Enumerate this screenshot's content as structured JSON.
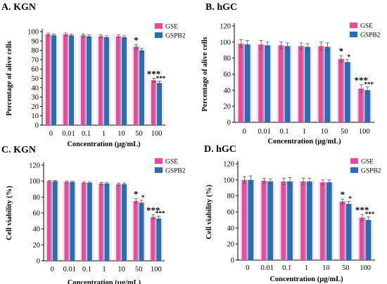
{
  "legend": {
    "series": [
      "GSE",
      "GSPB2"
    ]
  },
  "colors": {
    "GSE": "#e84c96",
    "GSPB2": "#2b6cb3",
    "GSE_glow": "#f2c2dc",
    "GSPB2_glow": "#b9cfee"
  },
  "chart_data": [
    {
      "type": "bar",
      "title": "A. KGN",
      "ylabel": "Percentage of alive cells",
      "xlabel": "Concentration (µg/mL)",
      "categories": [
        "0",
        "0.01",
        "0.1",
        "1",
        "10",
        "50",
        "100"
      ],
      "ylim": [
        0,
        100
      ],
      "yticks": [
        0,
        10,
        20,
        30,
        40,
        50,
        60,
        70,
        80,
        90,
        100
      ],
      "series": [
        {
          "name": "GSE",
          "values": [
            97,
            97,
            96,
            95,
            95,
            84,
            48
          ],
          "errors": [
            1.5,
            1.5,
            1.5,
            1.5,
            1.5,
            2,
            2
          ]
        },
        {
          "name": "GSPB2",
          "values": [
            96,
            96,
            95,
            94,
            94,
            80,
            45
          ],
          "errors": [
            1.5,
            1.5,
            1.5,
            1.5,
            1.5,
            2,
            2
          ]
        }
      ],
      "annotations": [
        {
          "category": "50",
          "series": "GSE",
          "text": "*"
        },
        {
          "category": "100",
          "series": "GSE",
          "text": "***"
        },
        {
          "category": "100",
          "series": "GSPB2",
          "text": "***"
        }
      ],
      "legend": "top-right",
      "grid": false
    },
    {
      "type": "bar",
      "title": "B. hGC",
      "ylabel": "Percentage of alive cells",
      "xlabel": "Concentration (µg/mL)",
      "categories": [
        "0",
        "0.01",
        "0.1",
        "1",
        "10",
        "50",
        "100"
      ],
      "ylim": [
        0,
        120
      ],
      "yticks": [
        0,
        20,
        40,
        60,
        80,
        100,
        120
      ],
      "series": [
        {
          "name": "GSE",
          "values": [
            98,
            97,
            96,
            95,
            95,
            79,
            42
          ],
          "errors": [
            5,
            5,
            4,
            4,
            5,
            4,
            5
          ]
        },
        {
          "name": "GSPB2",
          "values": [
            97,
            96,
            95,
            94,
            94,
            75,
            40
          ],
          "errors": [
            5,
            4,
            4,
            4,
            5,
            3,
            4
          ]
        }
      ],
      "annotations": [
        {
          "category": "50",
          "series": "GSE",
          "text": "*"
        },
        {
          "category": "50",
          "series": "GSPB2",
          "text": "*"
        },
        {
          "category": "100",
          "series": "GSE",
          "text": "***"
        },
        {
          "category": "100",
          "series": "GSPB2",
          "text": "***"
        }
      ],
      "legend": "top-right",
      "grid": false
    },
    {
      "type": "bar",
      "title": "C. KGN",
      "ylabel": "Cell viability (%)",
      "xlabel": "Concentration (µg/mL)",
      "categories": [
        "0",
        "0.01",
        "0.1",
        "1",
        "10",
        "50",
        "100"
      ],
      "ylim": [
        0,
        120
      ],
      "yticks": [
        0,
        20,
        40,
        60,
        80,
        100,
        120
      ],
      "series": [
        {
          "name": "GSE",
          "values": [
            100,
            99,
            98,
            97,
            96,
            75,
            55
          ],
          "errors": [
            1,
            1,
            1,
            1.5,
            1.5,
            3,
            3
          ]
        },
        {
          "name": "GSPB2",
          "values": [
            100,
            99,
            98,
            97,
            96,
            73,
            53
          ],
          "errors": [
            1,
            1,
            1,
            1.5,
            1.5,
            3,
            3
          ]
        }
      ],
      "annotations": [
        {
          "category": "50",
          "series": "GSE",
          "text": "*"
        },
        {
          "category": "50",
          "series": "GSPB2",
          "text": "*"
        },
        {
          "category": "100",
          "series": "GSE",
          "text": "***"
        },
        {
          "category": "100",
          "series": "GSPB2",
          "text": "***"
        }
      ],
      "legend": "top-right",
      "grid": false
    },
    {
      "type": "bar",
      "title": "D. hGC",
      "ylabel": "Cell viability (%)",
      "xlabel": "Concentration (µg/mL)",
      "categories": [
        "0",
        "0.01",
        "0.1",
        "1",
        "10",
        "50",
        "100"
      ],
      "ylim": [
        0,
        120
      ],
      "yticks": [
        0,
        20,
        40,
        60,
        80,
        100,
        120
      ],
      "series": [
        {
          "name": "GSE",
          "values": [
            100,
            99,
            98,
            98,
            97,
            73,
            53
          ],
          "errors": [
            4,
            3,
            4,
            4,
            3,
            3,
            4
          ]
        },
        {
          "name": "GSPB2",
          "values": [
            100,
            98,
            98,
            98,
            97,
            70,
            50
          ],
          "errors": [
            5,
            3,
            5,
            4,
            3,
            3,
            4
          ]
        }
      ],
      "annotations": [
        {
          "category": "50",
          "series": "GSE",
          "text": "*"
        },
        {
          "category": "50",
          "series": "GSPB2",
          "text": "*"
        },
        {
          "category": "100",
          "series": "GSE",
          "text": "***"
        },
        {
          "category": "100",
          "series": "GSPB2",
          "text": "***"
        }
      ],
      "legend": "top-right",
      "grid": false
    }
  ]
}
